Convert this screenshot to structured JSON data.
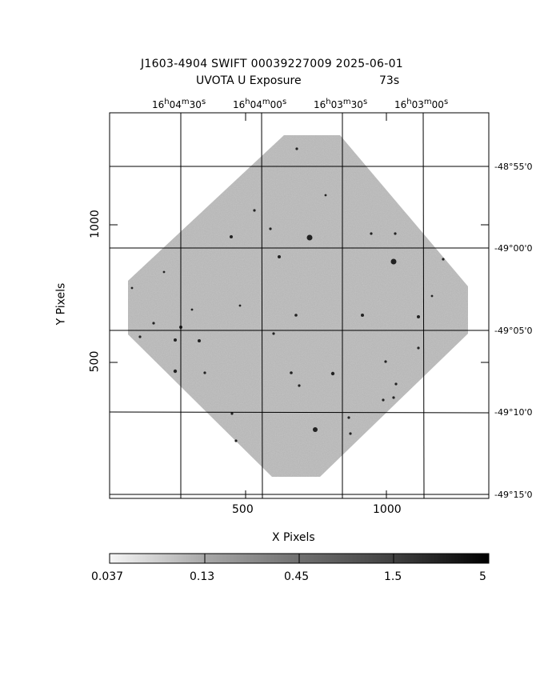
{
  "title": {
    "line1": "J1603-4904 SWIFT 00039227009 2025-06-01",
    "line2": "UVOTA U Exposure",
    "line3": "73s"
  },
  "ra_labels": [
    "16h04m30s",
    "16h04m00s",
    "16h03m30s",
    "16h03m00s"
  ],
  "ra_display": [
    {
      "h": "16",
      "m": "04",
      "s": "30"
    },
    {
      "h": "16",
      "m": "04",
      "s": "00"
    },
    {
      "h": "16",
      "m": "03",
      "s": "30"
    },
    {
      "h": "16",
      "m": "03",
      "s": "00"
    }
  ],
  "dec_labels": [
    "-48°55'0",
    "-49°00'0",
    "-49°05'0",
    "-49°10'0",
    "-49°15'0"
  ],
  "x_axis": {
    "label": "X Pixels",
    "ticks": [
      "500",
      "1000"
    ]
  },
  "y_axis": {
    "label": "Y Pixels",
    "ticks": [
      "1000",
      "500"
    ]
  },
  "colorbar": {
    "labels": [
      "0.037",
      "0.13",
      "0.45",
      "1.5",
      "5"
    ]
  }
}
